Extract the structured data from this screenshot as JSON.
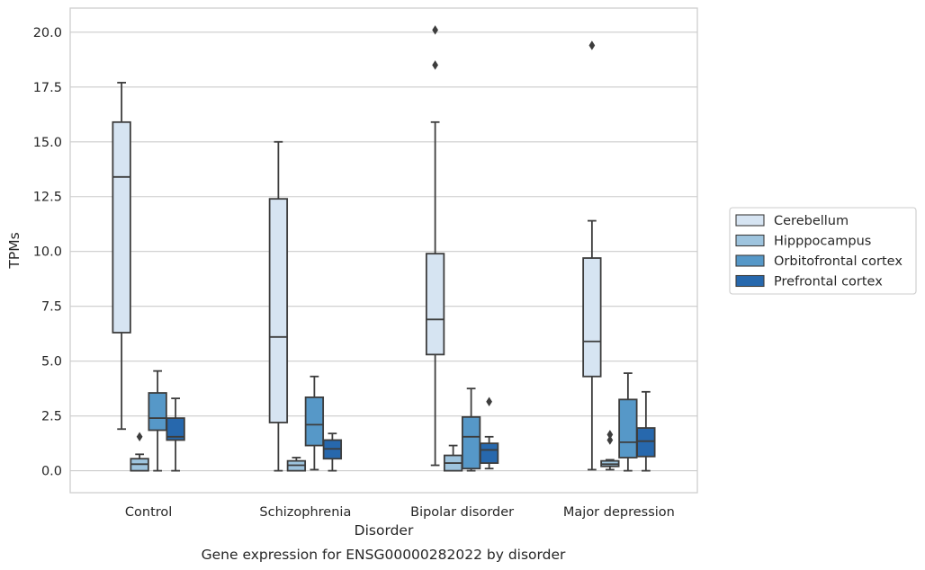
{
  "chart_data": {
    "type": "box",
    "caption": "Gene expression for ENSG00000282022 by disorder",
    "xlabel": "Disorder",
    "ylabel": "TPMs",
    "ylim": [
      -1,
      21.1
    ],
    "yticks": [
      0.0,
      2.5,
      5.0,
      7.5,
      10.0,
      12.5,
      15.0,
      17.5,
      20.0
    ],
    "ytick_labels": [
      "0.0",
      "2.5",
      "5.0",
      "7.5",
      "10.0",
      "12.5",
      "15.0",
      "17.5",
      "20.0"
    ],
    "grid": "horizontal",
    "legend_position": "right",
    "categories": [
      "Control",
      "Schizophrenia",
      "Bipolar disorder",
      "Major depression"
    ],
    "series": [
      {
        "name": "Cerebellum",
        "color": "#d6e4f2",
        "boxes": [
          {
            "whisker_low": 1.9,
            "q1": 6.3,
            "median": 13.4,
            "q3": 15.9,
            "whisker_high": 17.7,
            "outliers": []
          },
          {
            "whisker_low": 0.0,
            "q1": 2.2,
            "median": 6.1,
            "q3": 12.4,
            "whisker_high": 15.0,
            "outliers": []
          },
          {
            "whisker_low": 0.25,
            "q1": 5.3,
            "median": 6.9,
            "q3": 9.9,
            "whisker_high": 15.9,
            "outliers": [
              18.5,
              20.1
            ]
          },
          {
            "whisker_low": 0.05,
            "q1": 4.3,
            "median": 5.9,
            "q3": 9.7,
            "whisker_high": 11.4,
            "outliers": [
              19.4
            ]
          }
        ]
      },
      {
        "name": "Hipppocampus",
        "color": "#9ec4de",
        "boxes": [
          {
            "whisker_low": 0.0,
            "q1": 0.0,
            "median": 0.3,
            "q3": 0.55,
            "whisker_high": 0.75,
            "outliers": [
              1.55
            ]
          },
          {
            "whisker_low": 0.0,
            "q1": 0.0,
            "median": 0.25,
            "q3": 0.45,
            "whisker_high": 0.6,
            "outliers": []
          },
          {
            "whisker_low": 0.0,
            "q1": 0.0,
            "median": 0.35,
            "q3": 0.7,
            "whisker_high": 1.15,
            "outliers": []
          },
          {
            "whisker_low": 0.05,
            "q1": 0.2,
            "median": 0.3,
            "q3": 0.45,
            "whisker_high": 0.5,
            "outliers": [
              1.4,
              1.65
            ]
          }
        ]
      },
      {
        "name": "Orbitofrontal cortex",
        "color": "#5698c8",
        "boxes": [
          {
            "whisker_low": 0.0,
            "q1": 1.85,
            "median": 2.4,
            "q3": 3.55,
            "whisker_high": 4.55,
            "outliers": []
          },
          {
            "whisker_low": 0.05,
            "q1": 1.15,
            "median": 2.1,
            "q3": 3.35,
            "whisker_high": 4.3,
            "outliers": []
          },
          {
            "whisker_low": 0.0,
            "q1": 0.1,
            "median": 1.55,
            "q3": 2.45,
            "whisker_high": 3.75,
            "outliers": []
          },
          {
            "whisker_low": 0.0,
            "q1": 0.6,
            "median": 1.3,
            "q3": 3.25,
            "whisker_high": 4.45,
            "outliers": []
          }
        ]
      },
      {
        "name": "Prefrontal cortex",
        "color": "#2768ad",
        "boxes": [
          {
            "whisker_low": 0.0,
            "q1": 1.4,
            "median": 1.55,
            "q3": 2.4,
            "whisker_high": 3.3,
            "outliers": []
          },
          {
            "whisker_low": 0.0,
            "q1": 0.55,
            "median": 1.0,
            "q3": 1.4,
            "whisker_high": 1.7,
            "outliers": []
          },
          {
            "whisker_low": 0.1,
            "q1": 0.35,
            "median": 0.95,
            "q3": 1.25,
            "whisker_high": 1.55,
            "outliers": [
              3.15
            ]
          },
          {
            "whisker_low": 0.0,
            "q1": 0.65,
            "median": 1.35,
            "q3": 1.95,
            "whisker_high": 3.6,
            "outliers": []
          }
        ]
      }
    ]
  }
}
